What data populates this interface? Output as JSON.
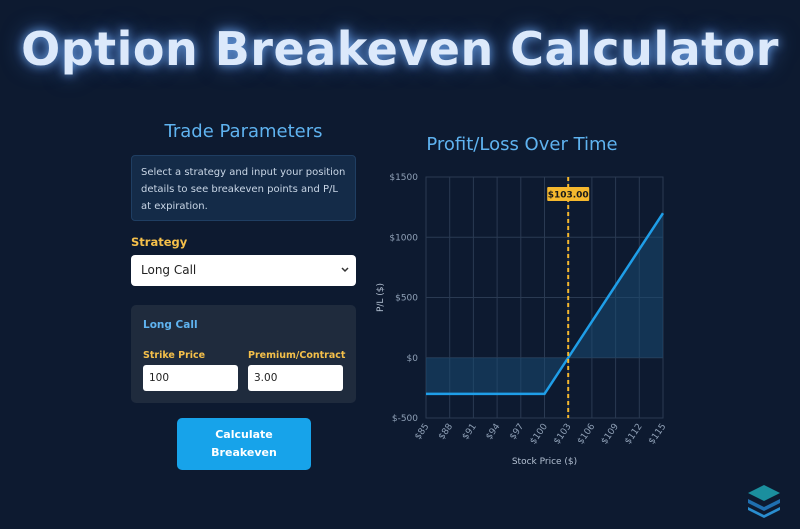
{
  "header": {
    "title": "Option Breakeven Calculator"
  },
  "parameters": {
    "section_title": "Trade Parameters",
    "info_text": "Select a strategy and input your position details to see breakeven points and P/L at expiration.",
    "strategy_label": "Strategy",
    "strategy_selected": "Long Call",
    "card_title": "Long Call",
    "strike_label": "Strike Price",
    "strike_value": "100",
    "premium_label": "Premium/Contract",
    "premium_value": "3.00",
    "calculate_label": "Calculate Breakeven"
  },
  "chart_data": {
    "type": "line",
    "title": "Profit/Loss Over Time",
    "xlabel": "Stock Price ($)",
    "ylabel": "P/L ($)",
    "x_ticks": [
      "$85",
      "$88",
      "$91",
      "$94",
      "$97",
      "$100",
      "$103",
      "$106",
      "$109",
      "$112",
      "$115"
    ],
    "y_ticks": [
      "$1500",
      "$1000",
      "$500",
      "$0",
      "$-500"
    ],
    "xlim": [
      85,
      115
    ],
    "ylim": [
      -500,
      1500
    ],
    "x": [
      85,
      88,
      91,
      94,
      97,
      100,
      103,
      106,
      109,
      112,
      115
    ],
    "y": [
      -300,
      -300,
      -300,
      -300,
      -300,
      -300,
      0,
      300,
      600,
      900,
      1200
    ],
    "breakeven": 103,
    "breakeven_label": "$103.00",
    "grid": true,
    "colors": {
      "line": "#1f9ee8",
      "breakeven": "#f5b82e",
      "fill": "#1a4a73"
    }
  }
}
